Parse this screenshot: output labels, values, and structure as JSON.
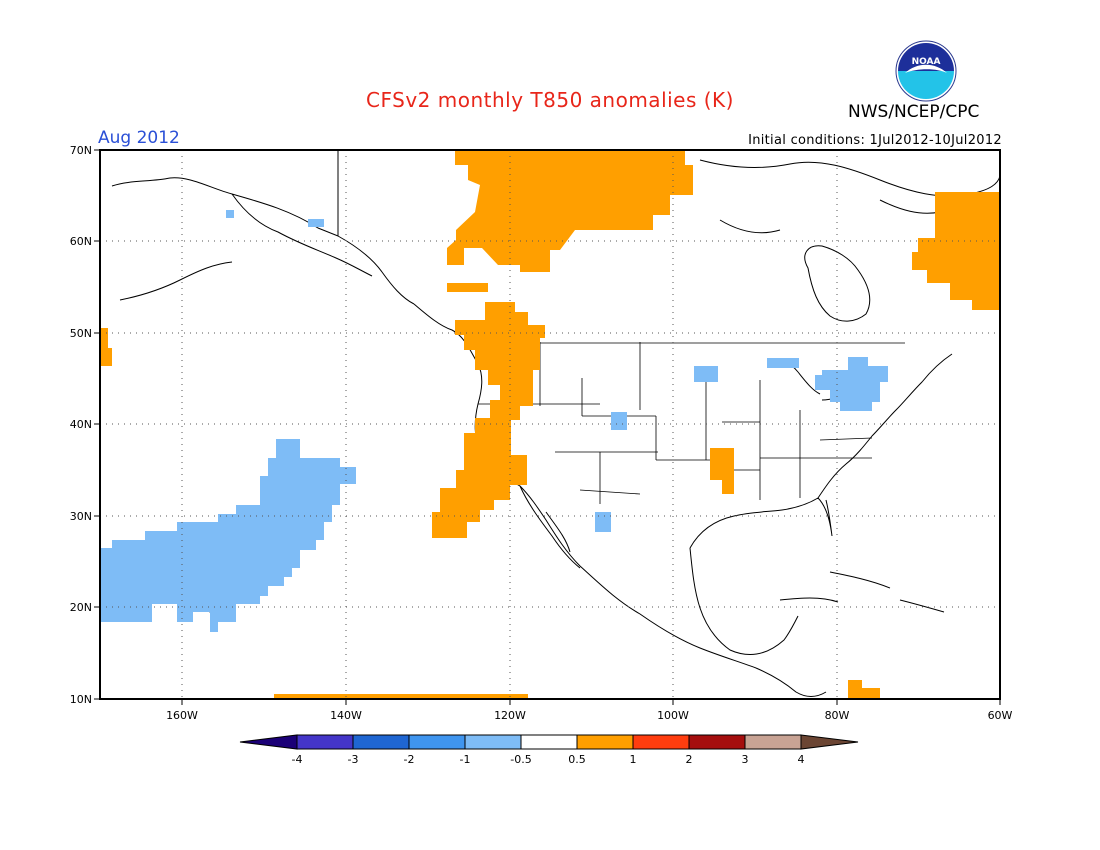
{
  "header": {
    "title": "CFSv2 monthly T850 anomalies (K)",
    "period": "Aug 2012",
    "agency": "NWS/NCEP/CPC",
    "initial_conditions": "Initial conditions: 1Jul2012-10Jul2012",
    "logo_text": "NOAA"
  },
  "map": {
    "lat_labels": [
      "70N",
      "60N",
      "50N",
      "40N",
      "30N",
      "20N",
      "10N"
    ],
    "lon_labels": [
      "160W",
      "140W",
      "120W",
      "100W",
      "80W",
      "60W"
    ],
    "lat_range": [
      10,
      70
    ],
    "lon_range": [
      -170,
      -60
    ],
    "grid": "dotted"
  },
  "colorbar": {
    "ticks": [
      "-4",
      "-3",
      "-2",
      "-1",
      "-0.5",
      "0.5",
      "1",
      "2",
      "3",
      "4"
    ],
    "colors": {
      "lt_m4": "#1b0077",
      "m4_m3": "#4435c8",
      "m3_m2": "#1f66d2",
      "m2_m1": "#3f95ef",
      "m1_m05": "#7ebcf6",
      "m05_05": "#ffffff",
      "p05_1": "#ff9f00",
      "p1_2": "#ff3d0f",
      "p2_3": "#a50e0e",
      "p3_4": "#c8a394",
      "gt_4": "#6b4533"
    }
  }
}
